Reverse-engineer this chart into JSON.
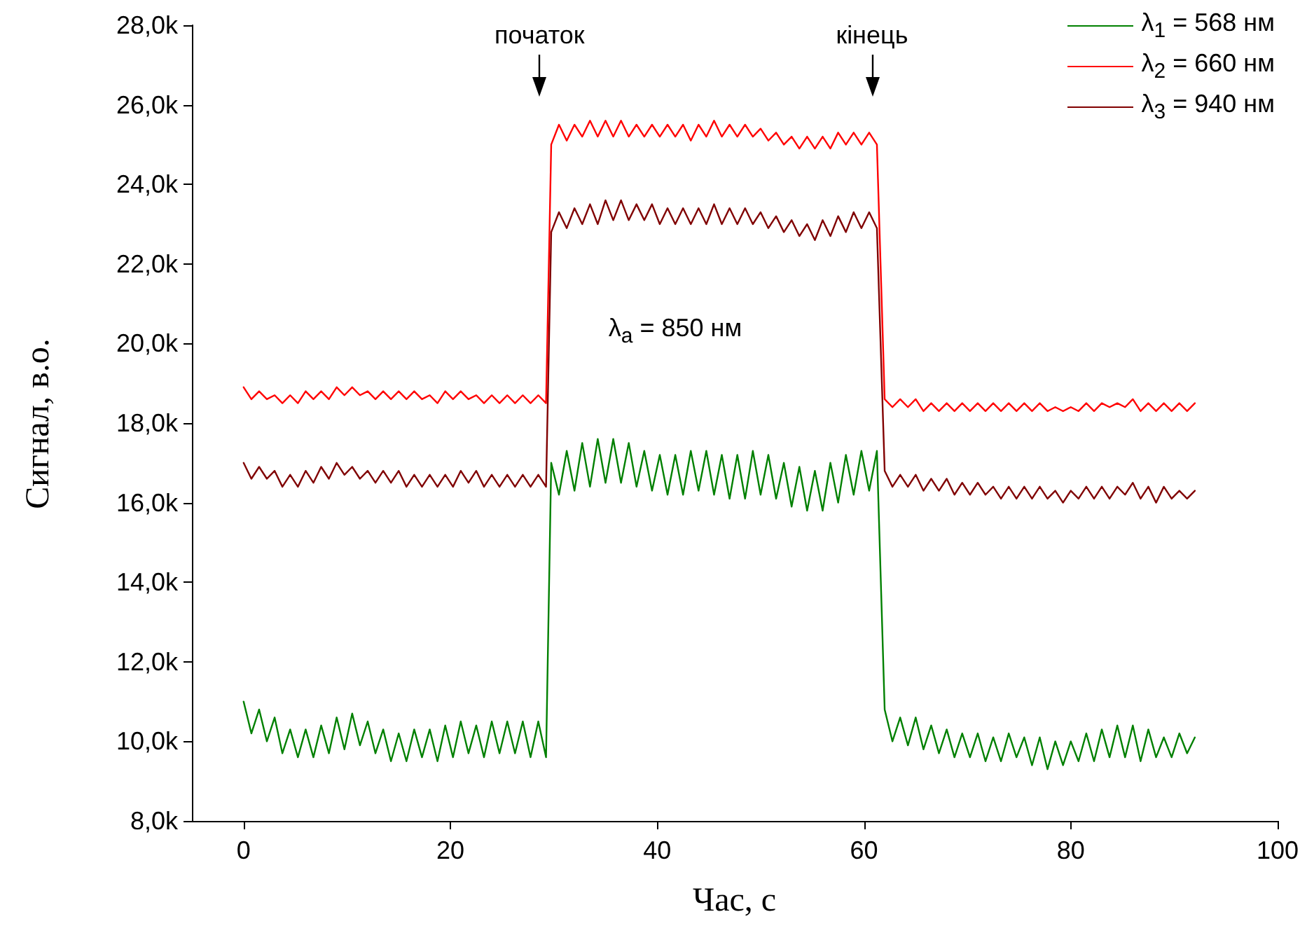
{
  "chart_data": {
    "type": "line",
    "xlabel": "Час, с",
    "ylabel": "Сигнал, в.о.",
    "xlim": [
      -5,
      100
    ],
    "xticks": [
      0,
      20,
      40,
      60,
      80,
      100
    ],
    "ylim": [
      8000,
      28000
    ],
    "yticks": [
      {
        "value": 8000,
        "label": "8,0k"
      },
      {
        "value": 10000,
        "label": "10,0k"
      },
      {
        "value": 12000,
        "label": "12,0k"
      },
      {
        "value": 14000,
        "label": "14,0k"
      },
      {
        "value": 16000,
        "label": "16,0k"
      },
      {
        "value": 18000,
        "label": "18,0k"
      },
      {
        "value": 20000,
        "label": "20,0k"
      },
      {
        "value": 22000,
        "label": "22,0k"
      },
      {
        "value": 24000,
        "label": "24,0k"
      },
      {
        "value": 26000,
        "label": "26,0k"
      },
      {
        "value": 28000,
        "label": "28,0k"
      }
    ],
    "grid": false,
    "legend": "top right",
    "marker": "none",
    "line_style": "solid",
    "annotations": [
      "початок",
      "кінець",
      "λ$_{a}$ = 850 нм"
    ],
    "x": [
      0,
      0.75,
      1.5,
      2.25,
      3,
      3.75,
      4.5,
      5.25,
      6,
      6.75,
      7.5,
      8.25,
      9,
      9.75,
      10.5,
      11.25,
      12,
      12.75,
      13.5,
      14.25,
      15,
      15.75,
      16.5,
      17.25,
      18,
      18.75,
      19.5,
      20.25,
      21,
      21.75,
      22.5,
      23.25,
      24,
      24.75,
      25.5,
      26.25,
      27,
      27.75,
      28.5,
      29.25,
      29.75,
      30.5,
      31.25,
      32,
      32.75,
      33.5,
      34.25,
      35,
      35.75,
      36.5,
      37.25,
      38,
      38.75,
      39.5,
      40.25,
      41,
      41.75,
      42.5,
      43.25,
      44,
      44.75,
      45.5,
      46.25,
      47,
      47.75,
      48.5,
      49.25,
      50,
      50.75,
      51.5,
      52.25,
      53,
      53.75,
      54.5,
      55.25,
      56,
      56.75,
      57.5,
      58.25,
      59,
      59.75,
      60.5,
      61.25,
      62,
      62.75,
      63.5,
      64.25,
      65,
      65.75,
      66.5,
      67.25,
      68,
      68.75,
      69.5,
      70.25,
      71,
      71.75,
      72.5,
      73.25,
      74,
      74.75,
      75.5,
      76.25,
      77,
      77.75,
      78.5,
      79.25,
      80,
      80.75,
      81.5,
      82.25,
      83,
      83.75,
      84.5,
      85.25,
      86,
      86.75,
      87.5,
      88.25,
      89,
      89.75,
      90.5,
      91.25,
      92
    ],
    "series": [
      {
        "name": "λ$_{1}$ = 568 нм",
        "color": "#008000",
        "values": [
          11000,
          10200,
          10800,
          10000,
          10600,
          9700,
          10300,
          9600,
          10300,
          9600,
          10400,
          9700,
          10600,
          9800,
          10700,
          9900,
          10500,
          9700,
          10300,
          9500,
          10200,
          9500,
          10300,
          9600,
          10300,
          9500,
          10400,
          9600,
          10500,
          9700,
          10400,
          9600,
          10500,
          9700,
          10500,
          9700,
          10500,
          9600,
          10500,
          9600,
          17000,
          16200,
          17300,
          16300,
          17500,
          16400,
          17600,
          16500,
          17600,
          16500,
          17500,
          16400,
          17300,
          16300,
          17200,
          16200,
          17200,
          16200,
          17300,
          16300,
          17300,
          16200,
          17200,
          16100,
          17200,
          16100,
          17300,
          16200,
          17200,
          16100,
          17000,
          15900,
          16900,
          15800,
          16800,
          15800,
          17000,
          16000,
          17200,
          16200,
          17300,
          16300,
          17300,
          10800,
          10000,
          10600,
          9900,
          10600,
          9800,
          10400,
          9700,
          10300,
          9600,
          10200,
          9600,
          10200,
          9500,
          10100,
          9500,
          10200,
          9600,
          10100,
          9400,
          10100,
          9300,
          10000,
          9400,
          10000,
          9500,
          10200,
          9500,
          10300,
          9600,
          10400,
          9600,
          10400,
          9500,
          10300,
          9600,
          10100,
          9600,
          10200,
          9700,
          10100
        ]
      },
      {
        "name": "λ$_{2}$ = 660 нм",
        "color": "#ff0000",
        "values": [
          18900,
          18600,
          18800,
          18600,
          18700,
          18500,
          18700,
          18500,
          18800,
          18600,
          18800,
          18600,
          18900,
          18700,
          18900,
          18700,
          18800,
          18600,
          18800,
          18600,
          18800,
          18600,
          18800,
          18600,
          18700,
          18500,
          18800,
          18600,
          18800,
          18600,
          18700,
          18500,
          18700,
          18500,
          18700,
          18500,
          18700,
          18500,
          18700,
          18500,
          25000,
          25500,
          25100,
          25500,
          25200,
          25600,
          25200,
          25600,
          25200,
          25600,
          25200,
          25500,
          25200,
          25500,
          25200,
          25500,
          25200,
          25500,
          25100,
          25500,
          25200,
          25600,
          25200,
          25500,
          25200,
          25500,
          25200,
          25400,
          25100,
          25300,
          25000,
          25200,
          24900,
          25200,
          24900,
          25200,
          24900,
          25300,
          25000,
          25300,
          25000,
          25300,
          25000,
          18600,
          18400,
          18600,
          18400,
          18600,
          18300,
          18500,
          18300,
          18500,
          18300,
          18500,
          18300,
          18500,
          18300,
          18500,
          18300,
          18500,
          18300,
          18500,
          18300,
          18500,
          18300,
          18400,
          18300,
          18400,
          18300,
          18500,
          18300,
          18500,
          18400,
          18500,
          18400,
          18600,
          18300,
          18500,
          18300,
          18500,
          18300,
          18500,
          18300,
          18500
        ]
      },
      {
        "name": "λ$_{3}$ = 940 нм",
        "color": "#800000",
        "values": [
          17000,
          16600,
          16900,
          16600,
          16800,
          16400,
          16700,
          16400,
          16800,
          16500,
          16900,
          16600,
          17000,
          16700,
          16900,
          16600,
          16800,
          16500,
          16800,
          16500,
          16800,
          16400,
          16700,
          16400,
          16700,
          16400,
          16700,
          16400,
          16800,
          16500,
          16800,
          16400,
          16700,
          16400,
          16700,
          16400,
          16700,
          16400,
          16700,
          16400,
          22800,
          23300,
          22900,
          23400,
          23000,
          23500,
          23000,
          23600,
          23100,
          23600,
          23100,
          23500,
          23100,
          23500,
          23000,
          23400,
          23000,
          23400,
          23000,
          23400,
          23000,
          23500,
          23000,
          23400,
          23000,
          23400,
          23000,
          23300,
          22900,
          23200,
          22800,
          23100,
          22700,
          23000,
          22600,
          23100,
          22700,
          23200,
          22800,
          23300,
          22900,
          23300,
          22900,
          16800,
          16400,
          16700,
          16400,
          16700,
          16300,
          16600,
          16300,
          16600,
          16200,
          16500,
          16200,
          16500,
          16200,
          16400,
          16100,
          16400,
          16100,
          16400,
          16100,
          16400,
          16100,
          16300,
          16000,
          16300,
          16100,
          16400,
          16100,
          16400,
          16100,
          16400,
          16200,
          16500,
          16100,
          16400,
          16000,
          16400,
          16100,
          16300,
          16100,
          16300
        ]
      }
    ]
  }
}
